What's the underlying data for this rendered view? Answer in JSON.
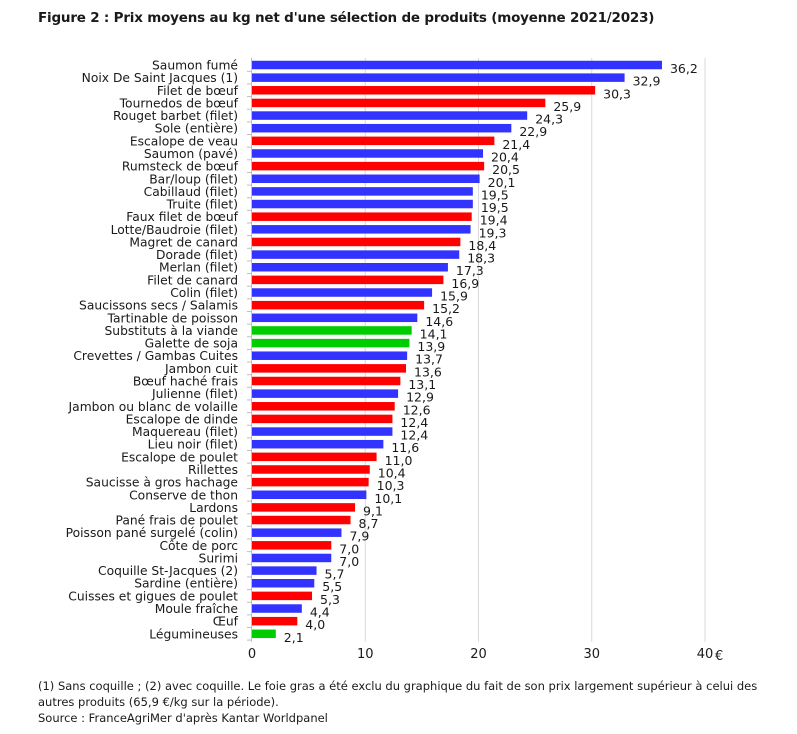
{
  "chart_data": {
    "type": "bar",
    "orientation": "horizontal",
    "title": "Figure 2 : Prix moyens au kg net d'une sélection de produits (moyenne 2021/2023)",
    "xlabel": "",
    "ylabel": "",
    "unit_label": "€",
    "xlim": [
      0,
      40
    ],
    "xticks": [
      "0",
      "10",
      "20",
      "30",
      "40"
    ],
    "grid": true,
    "colors": {
      "fish": "#3333ff",
      "meat": "#ff0000",
      "vegetal": "#00cc00"
    },
    "categories": [
      "Saumon fumé",
      "Noix De Saint Jacques (1)",
      "Filet de bœuf",
      "Tournedos de bœuf",
      "Rouget barbet (filet)",
      "Sole (entière)",
      "Escalope de veau",
      "Saumon (pavé)",
      "Rumsteck de bœuf",
      "Bar/loup (filet)",
      "Cabillaud (filet)",
      "Truite (filet)",
      "Faux filet de bœuf",
      "Lotte/Baudroie (filet)",
      "Magret de canard",
      "Dorade (filet)",
      "Merlan (filet)",
      "Filet de canard",
      "Colin (filet)",
      "Saucissons secs / Salamis",
      "Tartinable de poisson",
      "Substituts à la viande",
      "Galette de soja",
      "Crevettes / Gambas Cuites",
      "Jambon cuit",
      "Bœuf haché frais",
      "Julienne (filet)",
      "Jambon ou blanc de volaille",
      "Escalope de dinde",
      "Maquereau (filet)",
      "Lieu noir (filet)",
      "Escalope de poulet",
      "Rillettes",
      "Saucisse à gros hachage",
      "Conserve de thon",
      "Lardons",
      "Pané frais de poulet",
      "Poisson pané surgelé (colin)",
      "Côte de porc",
      "Surimi",
      "Coquille St-Jacques (2)",
      "Sardine (entière)",
      "Cuisses et  gigues de poulet",
      "Moule fraîche",
      "Œuf",
      "Légumineuses"
    ],
    "values": [
      36.2,
      32.9,
      30.3,
      25.9,
      24.3,
      22.9,
      21.4,
      20.4,
      20.5,
      20.1,
      19.5,
      19.5,
      19.4,
      19.3,
      18.4,
      18.3,
      17.3,
      16.9,
      15.9,
      15.2,
      14.6,
      14.1,
      13.9,
      13.7,
      13.6,
      13.1,
      12.9,
      12.6,
      12.4,
      12.4,
      11.6,
      11.0,
      10.4,
      10.3,
      10.1,
      9.1,
      8.7,
      7.9,
      7.0,
      7.0,
      5.7,
      5.5,
      5.3,
      4.4,
      4.0,
      2.1
    ],
    "value_labels": [
      "36,2",
      "32,9",
      "30,3",
      "25,9",
      "24,3",
      "22,9",
      "21,4",
      "20,4",
      "20,5",
      "20,1",
      "19,5",
      "19,5",
      "19,4",
      "19,3",
      "18,4",
      "18,3",
      "17,3",
      "16,9",
      "15,9",
      "15,2",
      "14,6",
      "14,1",
      "13,9",
      "13,7",
      "13,6",
      "13,1",
      "12,9",
      "12,6",
      "12,4",
      "12,4",
      "11,6",
      "11,0",
      "10,4",
      "10,3",
      "10,1",
      "9,1",
      "8,7",
      "7,9",
      "7,0",
      "7,0",
      "5,7",
      "5,5",
      "5,3",
      "4,4",
      "4,0",
      "2,1"
    ],
    "groups": [
      "fish",
      "fish",
      "meat",
      "meat",
      "fish",
      "fish",
      "meat",
      "fish",
      "meat",
      "fish",
      "fish",
      "fish",
      "meat",
      "fish",
      "meat",
      "fish",
      "fish",
      "meat",
      "fish",
      "meat",
      "fish",
      "vegetal",
      "vegetal",
      "fish",
      "meat",
      "meat",
      "fish",
      "meat",
      "meat",
      "fish",
      "fish",
      "meat",
      "meat",
      "meat",
      "fish",
      "meat",
      "meat",
      "fish",
      "meat",
      "fish",
      "fish",
      "fish",
      "meat",
      "fish",
      "meat",
      "vegetal"
    ]
  },
  "notes": {
    "footnote": "(1) Sans coquille ; (2) avec coquille. Le foie gras a été exclu du graphique du fait de son prix largement supérieur à celui des autres produits (65,9 €/kg sur la période).",
    "source": "Source : FranceAgriMer d'après Kantar Worldpanel"
  }
}
